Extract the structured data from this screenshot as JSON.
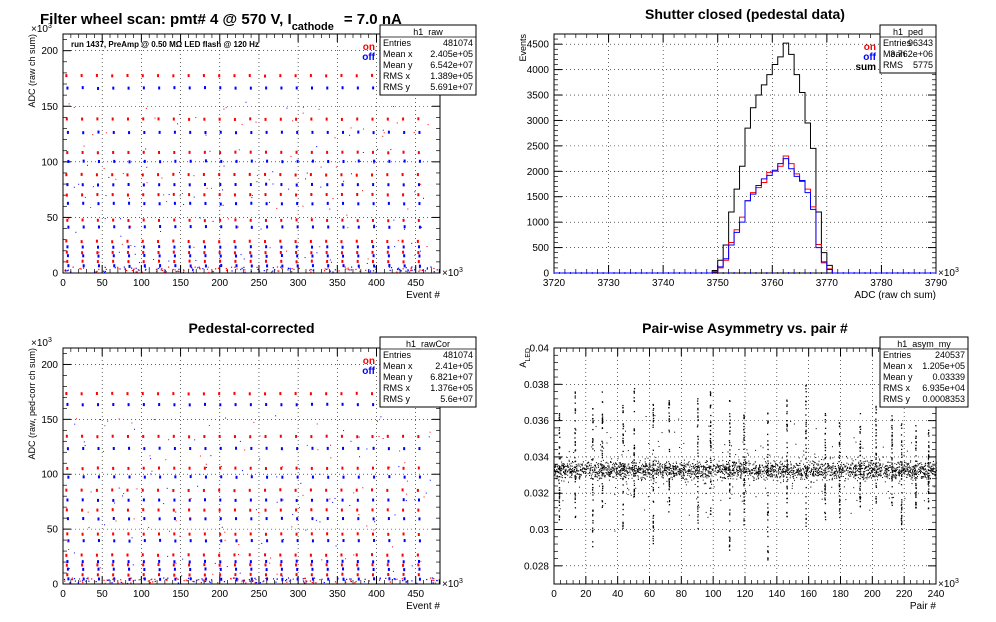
{
  "page_title": {
    "main": "Filter wheel scan: pmt#   4 @   570 V, I",
    "sub": "cathode",
    "tail": "= 7.0 nA"
  },
  "chart_data": [
    {
      "id": "raw",
      "type": "scatter",
      "title": "",
      "xlabel": "Event #",
      "ylabel": "ADC (raw ch sum)",
      "xlim": [
        0,
        481
      ],
      "ylim": [
        0,
        215
      ],
      "x_ticks": [
        0,
        50,
        100,
        150,
        200,
        250,
        300,
        350,
        400,
        450
      ],
      "y_ticks": [
        0,
        50,
        100,
        150,
        200
      ],
      "x_exponent": "×10",
      "x_exponent_sup": "3",
      "y_exponent": "×10",
      "y_exponent_sup": "3",
      "grid": true,
      "annotation": "run 1437, PreAmp @ 0.50 MΩ   LED flash @  120 Hz",
      "legend": [
        {
          "label": "on",
          "color": "#ff0000"
        },
        {
          "label": "off",
          "color": "#0000ff"
        }
      ],
      "levels_on": [
        177,
        138,
        108,
        88,
        70,
        47,
        28,
        18,
        10
      ],
      "levels_off": [
        166,
        126,
        100,
        79,
        62,
        41,
        23,
        15,
        6
      ],
      "period": 19.5,
      "stats": {
        "name": "h1_raw",
        "rows": [
          {
            "label": "Entries",
            "value": "481074"
          },
          {
            "label": "Mean x",
            "value": "2.405e+05"
          },
          {
            "label": "Mean y",
            "value": "6.542e+07"
          },
          {
            "label": "RMS x",
            "value": "1.389e+05"
          },
          {
            "label": "RMS y",
            "value": "5.691e+07"
          }
        ]
      }
    },
    {
      "id": "ped",
      "type": "line",
      "title": "Shutter closed (pedestal data)",
      "xlabel": "ADC (raw ch sum)",
      "ylabel": "Events",
      "xlim": [
        3720,
        3790
      ],
      "ylim": [
        0,
        4700
      ],
      "x_ticks": [
        3720,
        3730,
        3740,
        3750,
        3760,
        3770,
        3780,
        3790
      ],
      "y_ticks": [
        0,
        500,
        1000,
        1500,
        2000,
        2500,
        3000,
        3500,
        4000,
        4500
      ],
      "x_exponent": "×10",
      "x_exponent_sup": "3",
      "grid": true,
      "legend": [
        {
          "label": "on",
          "color": "#ff0000"
        },
        {
          "label": "off",
          "color": "#0000ff"
        },
        {
          "label": "sum",
          "color": "#000000"
        }
      ],
      "bin_start": 3749,
      "bin_width": 1,
      "series": [
        {
          "name": "sum",
          "color": "#000000",
          "values": [
            50,
            250,
            550,
            1200,
            1650,
            2100,
            2850,
            3250,
            3500,
            3700,
            3900,
            4100,
            4250,
            4520,
            4300,
            3900,
            3550,
            2950,
            2450,
            1200,
            400,
            150,
            0
          ]
        },
        {
          "name": "on",
          "color": "#ff0000",
          "values": [
            20,
            100,
            250,
            600,
            850,
            1100,
            1420,
            1580,
            1680,
            1780,
            1980,
            2000,
            2100,
            2300,
            2150,
            1950,
            1800,
            1650,
            1300,
            560,
            200,
            80,
            0
          ]
        },
        {
          "name": "off",
          "color": "#0000ff",
          "values": [
            25,
            120,
            280,
            550,
            800,
            1000,
            1420,
            1550,
            1720,
            1850,
            1920,
            2020,
            2150,
            2250,
            2050,
            1900,
            1820,
            1580,
            1250,
            500,
            220,
            70,
            0
          ]
        }
      ],
      "stats": {
        "name": "h1_ped",
        "rows": [
          {
            "label": "Entries",
            "value": "96343"
          },
          {
            "label": "Mean",
            "value": "3.762e+06"
          },
          {
            "label": "RMS",
            "value": "5775"
          }
        ]
      }
    },
    {
      "id": "cor",
      "type": "scatter",
      "title": "Pedestal-corrected",
      "xlabel": "Event #",
      "ylabel": "ADC (raw, ped-corr ch sum)",
      "xlim": [
        0,
        481
      ],
      "ylim": [
        0,
        215
      ],
      "x_ticks": [
        0,
        50,
        100,
        150,
        200,
        250,
        300,
        350,
        400,
        450
      ],
      "y_ticks": [
        0,
        50,
        100,
        150,
        200
      ],
      "x_exponent": "×10",
      "x_exponent_sup": "3",
      "y_exponent": "×10",
      "y_exponent_sup": "3",
      "grid": true,
      "legend": [
        {
          "label": "on",
          "color": "#ff0000"
        },
        {
          "label": "off",
          "color": "#0000ff"
        }
      ],
      "levels_on": [
        173,
        134,
        105,
        85,
        67,
        45,
        26,
        17,
        8
      ],
      "levels_off": [
        163,
        123,
        97,
        76,
        59,
        39,
        20,
        13,
        4
      ],
      "period": 19.5,
      "stats": {
        "name": "h1_rawCor",
        "rows": [
          {
            "label": "Entries",
            "value": "481074"
          },
          {
            "label": "Mean x",
            "value": "2.41e+05"
          },
          {
            "label": "Mean y",
            "value": "6.821e+07"
          },
          {
            "label": "RMS x",
            "value": "1.376e+05"
          },
          {
            "label": "RMS y",
            "value": "5.6e+07"
          }
        ]
      }
    },
    {
      "id": "asym",
      "type": "scatter",
      "title": "Pair-wise Asymmetry vs. pair #",
      "xlabel": "Pair #",
      "ylabel": "A",
      "ylabel_sub": "LED",
      "xlim": [
        0,
        240
      ],
      "ylim": [
        0.027,
        0.04
      ],
      "x_ticks": [
        0,
        20,
        40,
        60,
        80,
        100,
        120,
        140,
        160,
        180,
        200,
        220,
        240
      ],
      "y_ticks": [
        0.028,
        0.03,
        0.032,
        0.034,
        0.036,
        0.038,
        0.04
      ],
      "x_exponent": "×10",
      "x_exponent_sup": "3",
      "grid": true,
      "band_center": 0.0333,
      "spikes": [
        {
          "x": 3,
          "hi": 0.0365,
          "lo": 0.0305
        },
        {
          "x": 13,
          "hi": 0.0378,
          "lo": 0.0303
        },
        {
          "x": 24,
          "hi": 0.0372,
          "lo": 0.029
        },
        {
          "x": 30,
          "hi": 0.0382,
          "lo": 0.0312
        },
        {
          "x": 43,
          "hi": 0.0372,
          "lo": 0.03
        },
        {
          "x": 50,
          "hi": 0.038,
          "lo": 0.0312
        },
        {
          "x": 62,
          "hi": 0.037,
          "lo": 0.0292
        },
        {
          "x": 72,
          "hi": 0.0372,
          "lo": 0.031
        },
        {
          "x": 90,
          "hi": 0.0373,
          "lo": 0.03
        },
        {
          "x": 98,
          "hi": 0.0378,
          "lo": 0.0307
        },
        {
          "x": 110,
          "hi": 0.0372,
          "lo": 0.0288
        },
        {
          "x": 119,
          "hi": 0.0368,
          "lo": 0.0303
        },
        {
          "x": 134,
          "hi": 0.0365,
          "lo": 0.0282
        },
        {
          "x": 146,
          "hi": 0.0372,
          "lo": 0.03
        },
        {
          "x": 158,
          "hi": 0.038,
          "lo": 0.03
        },
        {
          "x": 170,
          "hi": 0.0365,
          "lo": 0.0298
        },
        {
          "x": 179,
          "hi": 0.036,
          "lo": 0.0305
        },
        {
          "x": 192,
          "hi": 0.0366,
          "lo": 0.0308
        },
        {
          "x": 202,
          "hi": 0.037,
          "lo": 0.031
        },
        {
          "x": 212,
          "hi": 0.0372,
          "lo": 0.0312
        },
        {
          "x": 218,
          "hi": 0.0364,
          "lo": 0.03
        },
        {
          "x": 227,
          "hi": 0.0358,
          "lo": 0.0312
        },
        {
          "x": 235,
          "hi": 0.0355,
          "lo": 0.031
        }
      ],
      "stats": {
        "name": "h1_asym_my",
        "rows": [
          {
            "label": "Entries",
            "value": "240537"
          },
          {
            "label": "Mean x",
            "value": "1.205e+05"
          },
          {
            "label": "Mean y",
            "value": "0.03339"
          },
          {
            "label": "RMS x",
            "value": "6.935e+04"
          },
          {
            "label": "RMS y",
            "value": "0.0008353"
          }
        ]
      }
    }
  ]
}
